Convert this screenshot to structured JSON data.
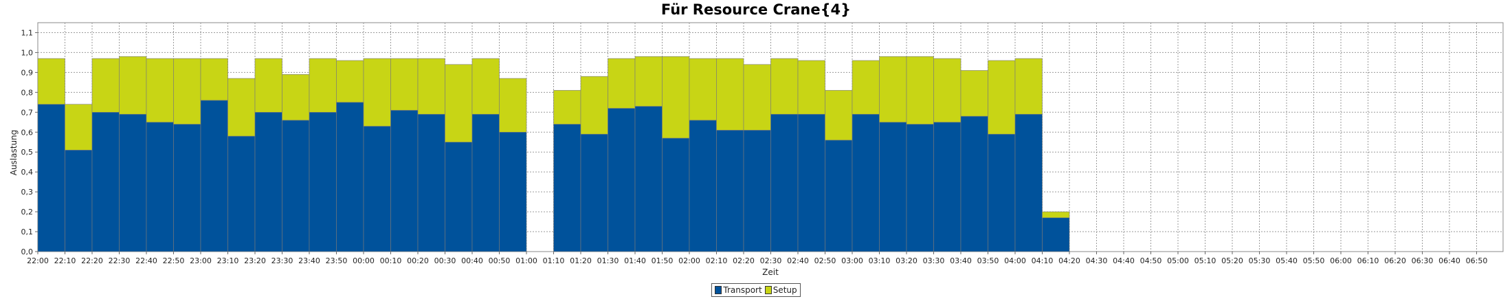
{
  "chart_data": {
    "type": "bar",
    "stacked": true,
    "title": "Für Resource Crane{4}",
    "xlabel": "Zeit",
    "ylabel": "Auslastung",
    "ylim": [
      0,
      1.15
    ],
    "yticks": [
      "0,0",
      "0,1",
      "0,2",
      "0,3",
      "0,4",
      "0,5",
      "0,6",
      "0,7",
      "0,8",
      "0,9",
      "1,0",
      "1,1"
    ],
    "grid": true,
    "legend_position": "bottom-center",
    "categories": [
      "22:00",
      "22:10",
      "22:20",
      "22:30",
      "22:40",
      "22:50",
      "23:00",
      "23:10",
      "23:20",
      "23:30",
      "23:40",
      "23:50",
      "00:00",
      "00:10",
      "00:20",
      "00:30",
      "00:40",
      "00:50",
      "01:00",
      "01:10",
      "01:20",
      "01:30",
      "01:40",
      "01:50",
      "02:00",
      "02:10",
      "02:20",
      "02:30",
      "02:40",
      "02:50",
      "03:00",
      "03:10",
      "03:20",
      "03:30",
      "03:40",
      "03:50",
      "04:00",
      "04:10",
      "04:20",
      "04:30",
      "04:40",
      "04:50",
      "05:00",
      "05:10",
      "05:20",
      "05:30",
      "05:40",
      "05:50",
      "06:00",
      "06:10",
      "06:20",
      "06:30",
      "06:40",
      "06:50"
    ],
    "series": [
      {
        "name": "Transport",
        "color": "#00529b",
        "values": [
          0.74,
          0.51,
          0.7,
          0.69,
          0.65,
          0.64,
          0.76,
          0.58,
          0.7,
          0.66,
          0.7,
          0.75,
          0.63,
          0.71,
          0.69,
          0.55,
          0.69,
          0.6,
          0,
          0.64,
          0.59,
          0.72,
          0.73,
          0.57,
          0.66,
          0.61,
          0.61,
          0.69,
          0.69,
          0.56,
          0.69,
          0.65,
          0.64,
          0.65,
          0.68,
          0.59,
          0.69,
          0.17,
          0,
          0,
          0,
          0,
          0,
          0,
          0,
          0,
          0,
          0,
          0,
          0,
          0,
          0,
          0,
          0
        ]
      },
      {
        "name": "Setup",
        "color": "#c8d515",
        "values": [
          0.23,
          0.23,
          0.27,
          0.29,
          0.32,
          0.33,
          0.21,
          0.29,
          0.27,
          0.23,
          0.27,
          0.21,
          0.34,
          0.26,
          0.28,
          0.39,
          0.28,
          0.27,
          0,
          0.17,
          0.29,
          0.25,
          0.25,
          0.41,
          0.31,
          0.36,
          0.33,
          0.28,
          0.27,
          0.25,
          0.27,
          0.33,
          0.34,
          0.32,
          0.23,
          0.37,
          0.28,
          0.03,
          0,
          0,
          0,
          0,
          0,
          0,
          0,
          0,
          0,
          0,
          0,
          0,
          0,
          0,
          0,
          0
        ]
      }
    ]
  }
}
